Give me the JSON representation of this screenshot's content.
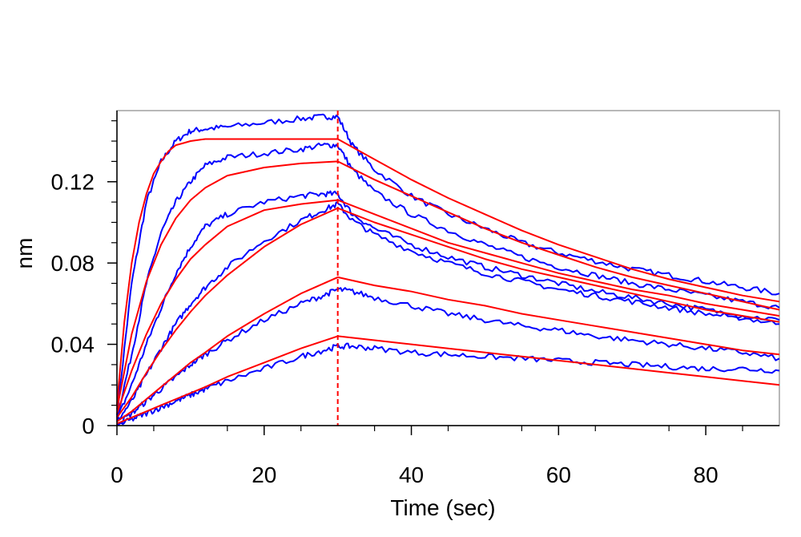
{
  "chart_data": {
    "type": "line",
    "title": "",
    "xlabel": "Time (sec)",
    "ylabel": "nm",
    "xlim": [
      0,
      90
    ],
    "ylim": [
      0,
      0.155
    ],
    "x_ticks": [
      0,
      20,
      40,
      60,
      80
    ],
    "x_tick_labels": [
      "0",
      "20",
      "40",
      "60",
      "80"
    ],
    "y_ticks": [
      0,
      0.04,
      0.08,
      0.12
    ],
    "y_tick_labels": [
      "0",
      "0.04",
      "0.08",
      "0.12"
    ],
    "grid": false,
    "legend": "none",
    "association_end_marker_x": 30,
    "series": [
      {
        "kind": "measured",
        "color": "#0000ff",
        "x": [
          0,
          2,
          4,
          6,
          8,
          10,
          12,
          15,
          20,
          25,
          28,
          30,
          32,
          35,
          40,
          45,
          50,
          55,
          60,
          65,
          70,
          75,
          80,
          85,
          90
        ],
        "y": [
          0.005,
          0.07,
          0.11,
          0.13,
          0.14,
          0.145,
          0.146,
          0.147,
          0.149,
          0.151,
          0.152,
          0.152,
          0.138,
          0.126,
          0.113,
          0.104,
          0.097,
          0.09,
          0.085,
          0.081,
          0.077,
          0.074,
          0.071,
          0.068,
          0.065
        ]
      },
      {
        "kind": "measured",
        "color": "#0000ff",
        "x": [
          0,
          2,
          4,
          6,
          8,
          10,
          12,
          15,
          20,
          25,
          28,
          30,
          32,
          35,
          40,
          45,
          50,
          55,
          60,
          65,
          70,
          75,
          80,
          85,
          90
        ],
        "y": [
          0.004,
          0.035,
          0.07,
          0.095,
          0.11,
          0.12,
          0.128,
          0.132,
          0.134,
          0.136,
          0.138,
          0.138,
          0.126,
          0.115,
          0.104,
          0.096,
          0.089,
          0.083,
          0.078,
          0.074,
          0.07,
          0.067,
          0.064,
          0.061,
          0.058
        ]
      },
      {
        "kind": "measured",
        "color": "#0000ff",
        "x": [
          0,
          2,
          4,
          6,
          8,
          10,
          12,
          15,
          20,
          25,
          28,
          30,
          32,
          35,
          40,
          45,
          50,
          55,
          60,
          65,
          70,
          75,
          80,
          85,
          90
        ],
        "y": [
          0.003,
          0.02,
          0.04,
          0.058,
          0.075,
          0.088,
          0.098,
          0.104,
          0.11,
          0.113,
          0.114,
          0.114,
          0.104,
          0.097,
          0.089,
          0.083,
          0.078,
          0.074,
          0.07,
          0.066,
          0.063,
          0.06,
          0.057,
          0.054,
          0.052
        ]
      },
      {
        "kind": "measured",
        "color": "#0000ff",
        "x": [
          0,
          2,
          4,
          6,
          8,
          10,
          12,
          15,
          20,
          25,
          28,
          30,
          32,
          35,
          40,
          45,
          50,
          55,
          60,
          65,
          70,
          75,
          80,
          85,
          90
        ],
        "y": [
          0.002,
          0.012,
          0.025,
          0.038,
          0.05,
          0.06,
          0.068,
          0.078,
          0.091,
          0.101,
          0.106,
          0.109,
          0.101,
          0.094,
          0.086,
          0.08,
          0.075,
          0.071,
          0.067,
          0.064,
          0.061,
          0.058,
          0.055,
          0.053,
          0.05
        ]
      },
      {
        "kind": "measured",
        "color": "#0000ff",
        "x": [
          0,
          2,
          4,
          6,
          8,
          10,
          12,
          15,
          20,
          25,
          28,
          30,
          32,
          35,
          40,
          45,
          50,
          55,
          60,
          65,
          70,
          75,
          80,
          85,
          90
        ],
        "y": [
          0.001,
          0.006,
          0.012,
          0.018,
          0.024,
          0.03,
          0.035,
          0.042,
          0.052,
          0.06,
          0.064,
          0.067,
          0.066,
          0.063,
          0.059,
          0.055,
          0.052,
          0.049,
          0.047,
          0.044,
          0.042,
          0.04,
          0.038,
          0.036,
          0.033
        ]
      },
      {
        "kind": "measured",
        "color": "#0000ff",
        "x": [
          0,
          2,
          4,
          6,
          8,
          10,
          12,
          15,
          20,
          25,
          28,
          30,
          32,
          35,
          40,
          45,
          50,
          55,
          60,
          65,
          70,
          75,
          80,
          85,
          90
        ],
        "y": [
          0.0,
          0.003,
          0.006,
          0.009,
          0.012,
          0.015,
          0.018,
          0.022,
          0.028,
          0.034,
          0.037,
          0.039,
          0.039,
          0.038,
          0.036,
          0.035,
          0.034,
          0.033,
          0.032,
          0.031,
          0.03,
          0.029,
          0.028,
          0.028,
          0.027
        ]
      },
      {
        "kind": "fit",
        "color": "#ff0000",
        "x": [
          0,
          1,
          2,
          3,
          4,
          5,
          6,
          7,
          8,
          9,
          10,
          12,
          15,
          20,
          25,
          30,
          35,
          40,
          45,
          50,
          55,
          60,
          65,
          70,
          75,
          80,
          85,
          90
        ],
        "y": [
          0.01,
          0.051,
          0.08,
          0.1,
          0.114,
          0.124,
          0.13,
          0.135,
          0.138,
          0.139,
          0.14,
          0.141,
          0.141,
          0.141,
          0.141,
          0.141,
          0.131,
          0.121,
          0.112,
          0.104,
          0.096,
          0.089,
          0.083,
          0.077,
          0.072,
          0.068,
          0.064,
          0.061
        ]
      },
      {
        "kind": "fit",
        "color": "#ff0000",
        "x": [
          0,
          2,
          4,
          6,
          8,
          10,
          12,
          15,
          20,
          25,
          30,
          35,
          40,
          45,
          50,
          55,
          60,
          65,
          70,
          75,
          80,
          85,
          90
        ],
        "y": [
          0.008,
          0.045,
          0.071,
          0.089,
          0.102,
          0.111,
          0.117,
          0.123,
          0.127,
          0.129,
          0.13,
          0.121,
          0.113,
          0.105,
          0.097,
          0.09,
          0.084,
          0.078,
          0.073,
          0.069,
          0.065,
          0.061,
          0.057
        ]
      },
      {
        "kind": "fit",
        "color": "#ff0000",
        "x": [
          0,
          2,
          4,
          6,
          8,
          10,
          12,
          15,
          20,
          25,
          30,
          35,
          40,
          45,
          50,
          55,
          60,
          65,
          70,
          75,
          80,
          85,
          90
        ],
        "y": [
          0.006,
          0.027,
          0.045,
          0.06,
          0.072,
          0.082,
          0.089,
          0.098,
          0.106,
          0.109,
          0.111,
          0.104,
          0.097,
          0.09,
          0.085,
          0.08,
          0.075,
          0.071,
          0.067,
          0.064,
          0.06,
          0.057,
          0.054
        ]
      },
      {
        "kind": "fit",
        "color": "#ff0000",
        "x": [
          0,
          2,
          4,
          6,
          8,
          10,
          12,
          15,
          20,
          25,
          30,
          35,
          40,
          45,
          50,
          55,
          60,
          65,
          70,
          75,
          80,
          85,
          90
        ],
        "y": [
          0.004,
          0.014,
          0.026,
          0.037,
          0.047,
          0.056,
          0.064,
          0.074,
          0.088,
          0.099,
          0.107,
          0.1,
          0.094,
          0.088,
          0.082,
          0.077,
          0.073,
          0.069,
          0.065,
          0.061,
          0.057,
          0.054,
          0.051
        ]
      },
      {
        "kind": "fit",
        "color": "#ff0000",
        "x": [
          0,
          2,
          4,
          6,
          8,
          10,
          12,
          15,
          20,
          25,
          30,
          35,
          40,
          45,
          50,
          55,
          60,
          65,
          70,
          75,
          80,
          85,
          90
        ],
        "y": [
          0.002,
          0.007,
          0.013,
          0.019,
          0.025,
          0.031,
          0.036,
          0.044,
          0.055,
          0.065,
          0.073,
          0.069,
          0.066,
          0.062,
          0.059,
          0.055,
          0.052,
          0.049,
          0.046,
          0.043,
          0.04,
          0.037,
          0.035
        ]
      },
      {
        "kind": "fit",
        "color": "#ff0000",
        "x": [
          0,
          2,
          4,
          6,
          8,
          10,
          12,
          15,
          20,
          25,
          30,
          35,
          40,
          45,
          50,
          55,
          60,
          65,
          70,
          75,
          80,
          85,
          90
        ],
        "y": [
          0.001,
          0.004,
          0.007,
          0.01,
          0.013,
          0.016,
          0.019,
          0.024,
          0.031,
          0.038,
          0.044,
          0.042,
          0.04,
          0.038,
          0.036,
          0.034,
          0.032,
          0.03,
          0.028,
          0.026,
          0.024,
          0.022,
          0.02
        ]
      }
    ]
  }
}
